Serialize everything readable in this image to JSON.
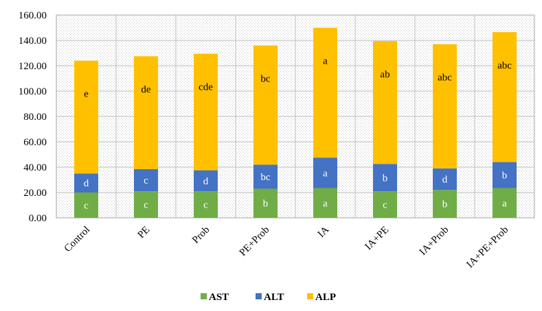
{
  "chart_data": {
    "type": "bar",
    "stacked": true,
    "categories": [
      "Control",
      "PE",
      "Prob",
      "PE+Prob",
      "IA",
      "IA+PE",
      "IA+Prob",
      "IA+PE+Prob"
    ],
    "series": [
      {
        "name": "AST",
        "color": "#70AD47",
        "values": [
          20.0,
          21.0,
          21.0,
          23.0,
          23.5,
          21.0,
          22.0,
          23.5
        ],
        "labels": [
          "c",
          "c",
          "c",
          "b",
          "a",
          "c",
          "b",
          "a"
        ]
      },
      {
        "name": "ALT",
        "color": "#4472C4",
        "values": [
          15.0,
          17.5,
          16.5,
          19.0,
          24.0,
          21.5,
          17.0,
          20.5
        ],
        "labels": [
          "d",
          "c",
          "d",
          "bc",
          "a",
          "b",
          "d",
          "b"
        ]
      },
      {
        "name": "ALP",
        "color": "#FFC000",
        "values": [
          89.0,
          89.0,
          92.0,
          94.0,
          102.5,
          97.0,
          98.0,
          102.5
        ],
        "labels": [
          "e",
          "de",
          "cde",
          "bc",
          "a",
          "ab",
          "abc",
          "abc"
        ]
      }
    ],
    "y_ticks": [
      "0.00",
      "20.00",
      "40.00",
      "60.00",
      "80.00",
      "100.00",
      "120.00",
      "140.00",
      "160.00"
    ],
    "ylim": [
      0,
      160
    ],
    "grid": true,
    "legend_position": "bottom"
  }
}
